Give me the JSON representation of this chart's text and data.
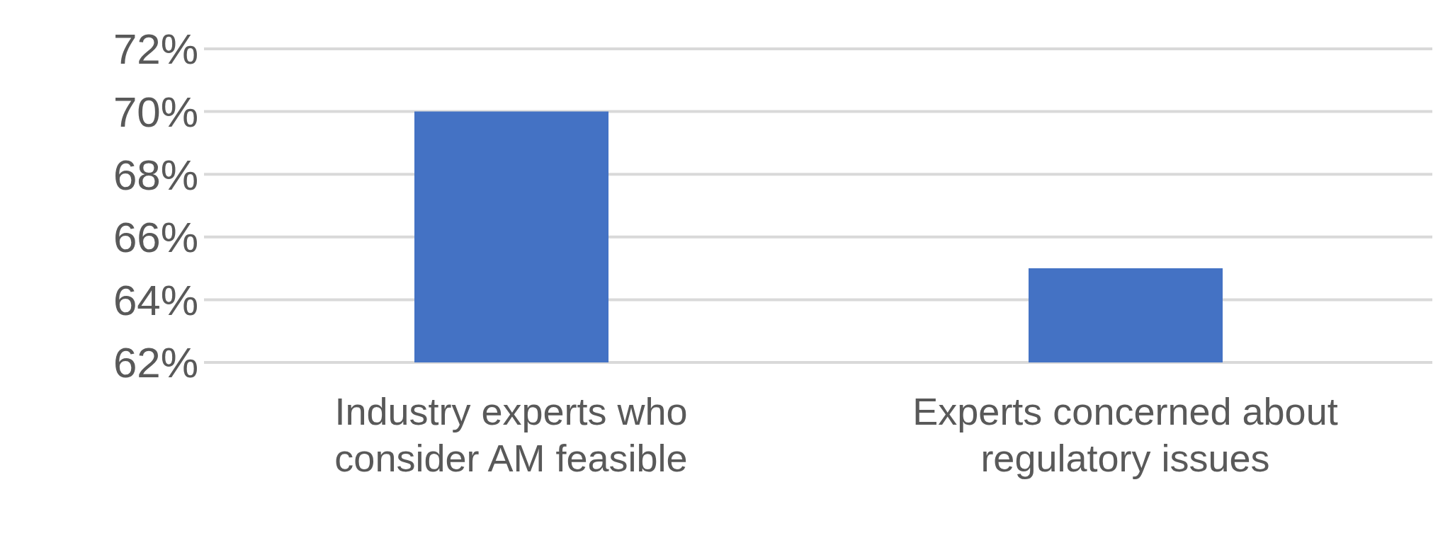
{
  "chart_data": {
    "type": "bar",
    "categories": [
      "Industry experts who consider AM feasible",
      "Experts concerned about regulatory issues"
    ],
    "values": [
      70,
      65
    ],
    "color": "#4472c4",
    "ylim": [
      62,
      72
    ],
    "yticks": [
      {
        "value": 62,
        "label": "62%"
      },
      {
        "value": 64,
        "label": "64%"
      },
      {
        "value": 66,
        "label": "66%"
      },
      {
        "value": 68,
        "label": "68%"
      },
      {
        "value": 70,
        "label": "70%"
      },
      {
        "value": 72,
        "label": "72%"
      }
    ],
    "grid": "y"
  }
}
